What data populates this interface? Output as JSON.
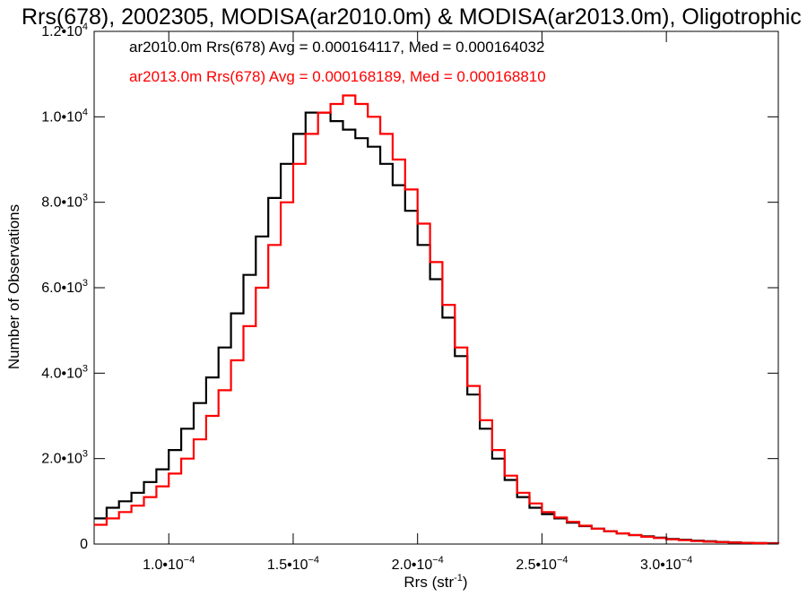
{
  "chart_data": {
    "type": "line",
    "title": "Rrs(678), 2002305, MODISA(ar2010.0m) & MODISA(ar2013.0m), Oligotrophic",
    "xlabel_text": "Rrs (str",
    "xlabel_sup": "-1",
    "xlabel_close": ")",
    "ylabel": "Number of Observations",
    "xlim": [
      7e-05,
      0.000345
    ],
    "ylim": [
      0,
      12000
    ],
    "grid": false,
    "legend_position": "top-left",
    "x_ticks": [
      {
        "value": 0.0001,
        "mantissa": "1.0•10",
        "exp": "−4"
      },
      {
        "value": 0.00015,
        "mantissa": "1.5•10",
        "exp": "−4"
      },
      {
        "value": 0.0002,
        "mantissa": "2.0•10",
        "exp": "−4"
      },
      {
        "value": 0.00025,
        "mantissa": "2.5•10",
        "exp": "−4"
      },
      {
        "value": 0.0003,
        "mantissa": "3.0•10",
        "exp": "−4"
      }
    ],
    "y_ticks": [
      {
        "value": 0,
        "mantissa": "0",
        "exp": ""
      },
      {
        "value": 2000,
        "mantissa": "2.0•10",
        "exp": "3"
      },
      {
        "value": 4000,
        "mantissa": "4.0•10",
        "exp": "3"
      },
      {
        "value": 6000,
        "mantissa": "6.0•10",
        "exp": "3"
      },
      {
        "value": 8000,
        "mantissa": "8.0•10",
        "exp": "3"
      },
      {
        "value": 10000,
        "mantissa": "1.0•10",
        "exp": "4"
      },
      {
        "value": 12000,
        "mantissa": "1.2•10",
        "exp": "4"
      }
    ],
    "series": [
      {
        "name": "ar2010.0m Rrs(678) Avg = 0.000164117, Med = 0.000164032",
        "color": "#000000",
        "x": [
          7e-05,
          7.5e-05,
          8e-05,
          8.5e-05,
          9e-05,
          9.5e-05,
          0.0001,
          0.000105,
          0.00011,
          0.000115,
          0.00012,
          0.000125,
          0.00013,
          0.000135,
          0.00014,
          0.000145,
          0.00015,
          0.000155,
          0.00016,
          0.000165,
          0.00017,
          0.000175,
          0.00018,
          0.000185,
          0.00019,
          0.000195,
          0.0002,
          0.000205,
          0.00021,
          0.000215,
          0.00022,
          0.000225,
          0.00023,
          0.000235,
          0.00024,
          0.000245,
          0.00025,
          0.000255,
          0.00026,
          0.000265,
          0.00027,
          0.000275,
          0.00028,
          0.000285,
          0.00029,
          0.000295,
          0.0003,
          0.000305,
          0.00031,
          0.000315,
          0.00032,
          0.000325,
          0.00033,
          0.000335,
          0.00034,
          0.000345
        ],
        "y": [
          600,
          850,
          1000,
          1200,
          1450,
          1750,
          2200,
          2700,
          3300,
          3900,
          4600,
          5400,
          6300,
          7200,
          8100,
          8900,
          9600,
          10100,
          10100,
          9900,
          9700,
          9500,
          9300,
          8900,
          8400,
          7800,
          7000,
          6200,
          5300,
          4400,
          3500,
          2700,
          2000,
          1500,
          1100,
          850,
          700,
          600,
          500,
          420,
          360,
          300,
          250,
          210,
          180,
          150,
          120,
          100,
          80,
          65,
          50,
          40,
          30,
          25,
          20,
          15
        ]
      },
      {
        "name": "ar2013.0m Rrs(678) Avg = 0.000168189, Med = 0.000168810",
        "color": "#ff0000",
        "x": [
          7e-05,
          7.5e-05,
          8e-05,
          8.5e-05,
          9e-05,
          9.5e-05,
          0.0001,
          0.000105,
          0.00011,
          0.000115,
          0.00012,
          0.000125,
          0.00013,
          0.000135,
          0.00014,
          0.000145,
          0.00015,
          0.000155,
          0.00016,
          0.000165,
          0.00017,
          0.000175,
          0.00018,
          0.000185,
          0.00019,
          0.000195,
          0.0002,
          0.000205,
          0.00021,
          0.000215,
          0.00022,
          0.000225,
          0.00023,
          0.000235,
          0.00024,
          0.000245,
          0.00025,
          0.000255,
          0.00026,
          0.000265,
          0.00027,
          0.000275,
          0.00028,
          0.000285,
          0.00029,
          0.000295,
          0.0003,
          0.000305,
          0.00031,
          0.000315,
          0.00032,
          0.000325,
          0.00033,
          0.000335,
          0.00034,
          0.000345
        ],
        "y": [
          450,
          600,
          750,
          900,
          1100,
          1350,
          1650,
          2000,
          2450,
          3000,
          3600,
          4300,
          5100,
          6000,
          7000,
          8000,
          8900,
          9600,
          10100,
          10300,
          10500,
          10300,
          10000,
          9600,
          9000,
          8300,
          7500,
          6600,
          5600,
          4600,
          3700,
          2900,
          2200,
          1600,
          1200,
          950,
          750,
          620,
          520,
          430,
          360,
          300,
          250,
          210,
          170,
          140,
          110,
          90,
          70,
          55,
          45,
          35,
          28,
          20,
          15,
          10
        ]
      }
    ]
  }
}
